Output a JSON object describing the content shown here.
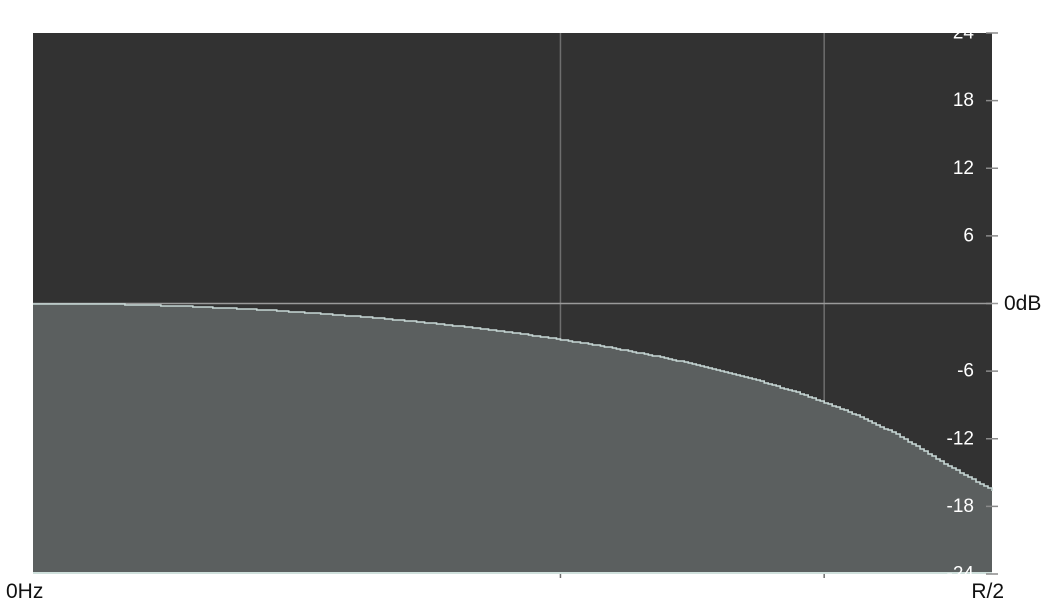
{
  "chart_data": {
    "type": "area",
    "title": "",
    "xlabel": "",
    "ylabel": "",
    "x_start_label": "0Hz",
    "x_end_label": "R/2",
    "x_range": [
      0,
      1
    ],
    "x_gridlines": [
      0.55,
      0.825
    ],
    "ylim": [
      -24,
      24
    ],
    "y_ticks": [
      {
        "value": 24,
        "label": "24"
      },
      {
        "value": 18,
        "label": "18"
      },
      {
        "value": 12,
        "label": "12"
      },
      {
        "value": 6,
        "label": "6"
      },
      {
        "value": 0,
        "label": "0dB"
      },
      {
        "value": -6,
        "label": "-6"
      },
      {
        "value": -12,
        "label": "-12"
      },
      {
        "value": -18,
        "label": "-18"
      },
      {
        "value": -24,
        "label": "-24"
      }
    ],
    "grid": true,
    "series": [
      {
        "x": [
          0,
          0.05,
          0.1,
          0.15,
          0.2,
          0.25,
          0.3,
          0.35,
          0.4,
          0.45,
          0.5,
          0.55,
          0.6,
          0.65,
          0.7,
          0.75,
          0.8,
          0.85,
          0.9,
          0.95,
          1.0
        ],
        "y": [
          0,
          -0.02,
          -0.1,
          -0.22,
          -0.4,
          -0.62,
          -0.9,
          -1.23,
          -1.62,
          -2.07,
          -2.6,
          -3.2,
          -3.89,
          -4.69,
          -5.6,
          -6.7,
          -8.0,
          -9.6,
          -11.6,
          -14.2,
          -16.6
        ]
      }
    ],
    "colors": {
      "plot_background": "#323232",
      "fill": "#5b5f5f",
      "curve": "#c8d8d6",
      "grid": "#6e6e6e",
      "zero_line": "#9a9a9a",
      "bottom_axis": "#cfe0dc",
      "tick_text": "#ffffff",
      "label_text": "#111111"
    }
  }
}
